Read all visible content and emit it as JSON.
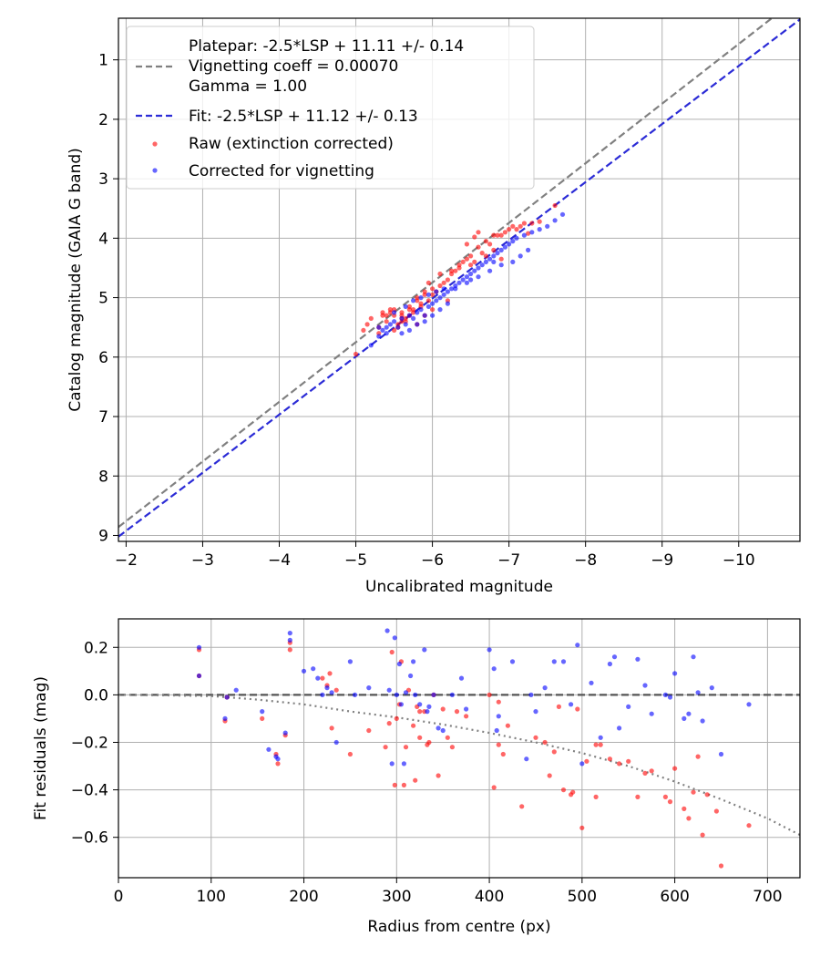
{
  "chart_data": [
    {
      "type": "scatter",
      "xlabel": "Uncalibrated magnitude",
      "ylabel": "Catalog magnitude (GAIA G band)",
      "xlim": [
        -1.9,
        -10.8
      ],
      "ylim": [
        9.1,
        0.3
      ],
      "xticks": [
        -2,
        -3,
        -4,
        -5,
        -6,
        -7,
        -8,
        -9,
        -10
      ],
      "xtick_labels": [
        "−2",
        "−3",
        "−4",
        "−5",
        "−6",
        "−7",
        "−8",
        "−9",
        "−10"
      ],
      "yticks": [
        1,
        2,
        3,
        4,
        5,
        6,
        7,
        8,
        9
      ],
      "ytick_labels": [
        "1",
        "2",
        "3",
        "4",
        "5",
        "6",
        "7",
        "8",
        "9"
      ],
      "grid": true,
      "legend_position": "top-left",
      "legend": [
        {
          "label": "Platepar: -2.5*LSP + 11.11 +/- 0.14\nVignetting coeff = 0.00070\nGamma = 1.00",
          "style": "dashed",
          "color": "#808080"
        },
        {
          "label": "Fit: -2.5*LSP + 11.12 +/- 0.13",
          "style": "dashed",
          "color": "#2b2bd6"
        },
        {
          "label": "Raw (extinction corrected)",
          "style": "point",
          "color": "#ff0000"
        },
        {
          "label": "Corrected for vignetting",
          "style": "point",
          "color": "#0000ff"
        }
      ],
      "lines": [
        {
          "name": "Platepar",
          "color": "#808080",
          "x": [
            -1.9,
            -10.8
          ],
          "y": [
            8.86,
            -0.07
          ]
        },
        {
          "name": "Fit",
          "color": "#2b2bd6",
          "x": [
            -1.9,
            -10.8
          ],
          "y": [
            9.02,
            0.32
          ]
        }
      ],
      "series": [
        {
          "name": "Raw (extinction corrected)",
          "color": "#ff0000",
          "x": [
            -5.0,
            -5.1,
            -5.2,
            -5.15,
            -5.3,
            -5.35,
            -5.4,
            -5.45,
            -5.5,
            -5.55,
            -5.6,
            -5.65,
            -5.7,
            -5.75,
            -5.8,
            -5.85,
            -5.9,
            -5.95,
            -6.0,
            -5.55,
            -5.6,
            -5.7,
            -5.75,
            -5.8,
            -5.85,
            -5.9,
            -6.0,
            -6.05,
            -6.1,
            -6.15,
            -6.2,
            -6.25,
            -6.3,
            -6.35,
            -6.4,
            -6.45,
            -6.5,
            -6.55,
            -6.6,
            -6.65,
            -6.7,
            -6.75,
            -6.8,
            -6.85,
            -6.9,
            -6.95,
            -7.0,
            -7.05,
            -7.1,
            -7.15,
            -7.2,
            -7.3,
            -7.4,
            -7.6,
            -6.5,
            -6.6,
            -6.45,
            -6.25,
            -6.8,
            -5.9,
            -5.95,
            -5.45,
            -5.6,
            -5.5,
            -5.65,
            -5.8,
            -5.3,
            -5.4,
            -6.1,
            -6.35,
            -6.55,
            -6.7,
            -5.7,
            -5.5,
            -5.35,
            -5.6,
            -6.0,
            -6.2,
            -6.9,
            -7.25
          ],
          "y": [
            5.95,
            5.55,
            5.35,
            5.45,
            5.5,
            5.3,
            5.4,
            5.25,
            5.2,
            5.45,
            5.3,
            5.35,
            5.15,
            5.25,
            5.0,
            5.1,
            4.9,
            4.75,
            4.85,
            5.5,
            5.4,
            5.3,
            5.2,
            5.05,
            5.15,
            4.95,
            4.95,
            4.9,
            4.8,
            4.75,
            4.7,
            4.55,
            4.55,
            4.5,
            4.4,
            4.35,
            4.3,
            4.4,
            4.15,
            4.25,
            4.05,
            4.1,
            4.2,
            3.95,
            3.95,
            3.9,
            3.85,
            3.8,
            3.85,
            3.8,
            3.75,
            3.75,
            3.72,
            3.45,
            4.45,
            3.9,
            4.1,
            4.6,
            3.95,
            5.3,
            5.05,
            5.2,
            5.25,
            5.55,
            5.4,
            5.45,
            5.6,
            5.3,
            4.6,
            4.45,
            3.98,
            4.3,
            5.2,
            5.3,
            5.25,
            5.35,
            5.2,
            5.05,
            4.35,
            3.92
          ]
        },
        {
          "name": "Corrected for vignetting",
          "color": "#0000ff",
          "x": [
            -5.2,
            -5.3,
            -5.35,
            -5.4,
            -5.45,
            -5.5,
            -5.55,
            -5.6,
            -5.65,
            -5.7,
            -5.75,
            -5.8,
            -5.85,
            -5.9,
            -5.95,
            -6.0,
            -6.05,
            -6.1,
            -6.15,
            -6.2,
            -6.25,
            -6.3,
            -6.35,
            -6.4,
            -6.45,
            -6.5,
            -6.55,
            -6.6,
            -6.65,
            -6.7,
            -6.75,
            -6.8,
            -6.85,
            -6.9,
            -6.95,
            -7.0,
            -7.05,
            -7.1,
            -7.2,
            -7.3,
            -7.4,
            -7.5,
            -7.6,
            -7.7,
            -5.6,
            -5.7,
            -5.8,
            -5.9,
            -6.0,
            -6.1,
            -5.5,
            -5.65,
            -5.75,
            -5.85,
            -5.95,
            -6.05,
            -6.15,
            -6.3,
            -6.45,
            -6.6,
            -6.75,
            -6.9,
            -7.05,
            -7.15,
            -7.25,
            -5.4,
            -5.3,
            -6.2,
            -6.5,
            -6.8
          ],
          "y": [
            5.8,
            5.65,
            5.55,
            5.5,
            5.45,
            5.4,
            5.5,
            5.35,
            5.45,
            5.3,
            5.35,
            5.25,
            5.2,
            5.3,
            5.15,
            5.1,
            5.05,
            5.0,
            4.95,
            4.9,
            4.85,
            4.8,
            4.75,
            4.7,
            4.65,
            4.6,
            4.55,
            4.5,
            4.45,
            4.4,
            4.35,
            4.3,
            4.25,
            4.2,
            4.15,
            4.1,
            4.05,
            4.0,
            3.95,
            3.9,
            3.85,
            3.8,
            3.7,
            3.6,
            5.6,
            5.55,
            5.45,
            5.4,
            5.3,
            5.2,
            5.25,
            5.15,
            5.05,
            5.0,
            4.95,
            4.9,
            4.85,
            4.85,
            4.75,
            4.65,
            4.55,
            4.45,
            4.4,
            4.3,
            4.2,
            5.6,
            5.5,
            5.1,
            4.7,
            4.4
          ]
        }
      ]
    },
    {
      "type": "scatter",
      "xlabel": "Radius from centre (px)",
      "ylabel": "Fit residuals (mag)",
      "xlim": [
        0,
        735
      ],
      "ylim": [
        -0.77,
        0.32
      ],
      "xticks": [
        0,
        100,
        200,
        300,
        400,
        500,
        600,
        700
      ],
      "xtick_labels": [
        "0",
        "100",
        "200",
        "300",
        "400",
        "500",
        "600",
        "700"
      ],
      "yticks": [
        0.2,
        0.0,
        -0.2,
        -0.4,
        -0.6
      ],
      "ytick_labels": [
        "0.2",
        "0.0",
        "−0.2",
        "−0.4",
        "−0.6"
      ],
      "grid": true,
      "lines": [
        {
          "name": "Zero residual",
          "color": "#555555",
          "style": "dashed",
          "x": [
            0,
            735
          ],
          "y": [
            0,
            0
          ]
        },
        {
          "name": "Vignetting model",
          "color": "#808080",
          "style": "dotted",
          "x": [
            0,
            50,
            100,
            150,
            200,
            250,
            300,
            350,
            400,
            450,
            500,
            550,
            600,
            650,
            700,
            735
          ],
          "y": [
            0,
            -0.002,
            -0.005,
            -0.02,
            -0.04,
            -0.07,
            -0.095,
            -0.125,
            -0.16,
            -0.2,
            -0.245,
            -0.3,
            -0.365,
            -0.44,
            -0.52,
            -0.59
          ]
        }
      ],
      "series": [
        {
          "name": "Raw (extinction corrected)",
          "color": "#ff0000",
          "x": [
            87,
            87,
            117,
            115,
            155,
            170,
            172,
            180,
            185,
            185,
            220,
            225,
            228,
            230,
            235,
            250,
            288,
            292,
            295,
            298,
            300,
            303,
            305,
            308,
            310,
            313,
            318,
            320,
            322,
            325,
            330,
            333,
            335,
            340,
            345,
            350,
            355,
            360,
            365,
            375,
            400,
            405,
            410,
            415,
            420,
            435,
            450,
            460,
            470,
            475,
            480,
            488,
            490,
            495,
            500,
            505,
            515,
            520,
            530,
            540,
            550,
            560,
            568,
            575,
            590,
            595,
            600,
            610,
            615,
            620,
            625,
            630,
            635,
            645,
            650,
            680,
            325,
            270,
            410,
            465,
            515
          ],
          "y": [
            0.19,
            0.08,
            -0.01,
            -0.11,
            -0.1,
            -0.25,
            -0.29,
            -0.17,
            0.22,
            0.19,
            0.07,
            0.04,
            0.09,
            -0.14,
            0.02,
            -0.25,
            -0.22,
            -0.12,
            0.18,
            -0.38,
            -0.1,
            -0.04,
            0.14,
            -0.38,
            -0.22,
            0.02,
            -0.13,
            -0.36,
            -0.05,
            -0.18,
            -0.07,
            -0.21,
            -0.2,
            0.0,
            -0.34,
            -0.06,
            -0.18,
            -0.22,
            -0.07,
            -0.09,
            0.0,
            -0.39,
            -0.21,
            -0.25,
            -0.13,
            -0.47,
            -0.18,
            -0.2,
            -0.24,
            -0.05,
            -0.4,
            -0.42,
            -0.41,
            -0.06,
            -0.56,
            -0.28,
            -0.43,
            -0.21,
            -0.27,
            -0.29,
            -0.28,
            -0.43,
            -0.33,
            -0.32,
            -0.43,
            -0.45,
            -0.31,
            -0.48,
            -0.52,
            -0.41,
            -0.26,
            -0.59,
            -0.42,
            -0.49,
            -0.72,
            -0.55,
            -0.07,
            -0.15,
            -0.03,
            -0.34,
            -0.21
          ]
        },
        {
          "name": "Corrected for vignetting",
          "color": "#0000ff",
          "x": [
            87,
            87,
            117,
            115,
            127,
            155,
            162,
            170,
            172,
            180,
            185,
            185,
            200,
            210,
            215,
            220,
            225,
            230,
            235,
            250,
            255,
            270,
            290,
            292,
            295,
            298,
            300,
            303,
            305,
            308,
            310,
            315,
            318,
            320,
            325,
            330,
            333,
            335,
            340,
            345,
            350,
            360,
            370,
            375,
            400,
            405,
            408,
            410,
            425,
            440,
            445,
            450,
            460,
            470,
            480,
            488,
            495,
            500,
            510,
            520,
            530,
            535,
            540,
            550,
            560,
            568,
            575,
            590,
            595,
            600,
            610,
            615,
            620,
            625,
            630,
            640,
            650,
            680
          ],
          "y": [
            0.2,
            0.08,
            -0.01,
            -0.1,
            0.02,
            -0.07,
            -0.23,
            -0.26,
            -0.27,
            -0.16,
            0.23,
            0.26,
            0.1,
            0.11,
            0.07,
            0.0,
            0.03,
            0.01,
            -0.2,
            0.14,
            0.0,
            0.03,
            0.27,
            0.02,
            -0.29,
            0.24,
            0.0,
            0.13,
            -0.04,
            -0.29,
            0.01,
            0.08,
            0.14,
            0.0,
            -0.04,
            0.19,
            -0.07,
            -0.05,
            0.0,
            -0.14,
            -0.15,
            0.0,
            0.07,
            -0.06,
            0.19,
            0.11,
            -0.15,
            -0.09,
            0.14,
            -0.27,
            0.0,
            -0.07,
            0.03,
            0.14,
            0.14,
            -0.04,
            0.21,
            -0.29,
            0.05,
            -0.18,
            0.13,
            0.16,
            -0.14,
            -0.05,
            0.15,
            0.04,
            -0.08,
            0.0,
            -0.01,
            0.09,
            -0.1,
            -0.08,
            0.16,
            0.01,
            -0.11,
            0.03,
            -0.25,
            -0.04
          ]
        }
      ]
    }
  ]
}
